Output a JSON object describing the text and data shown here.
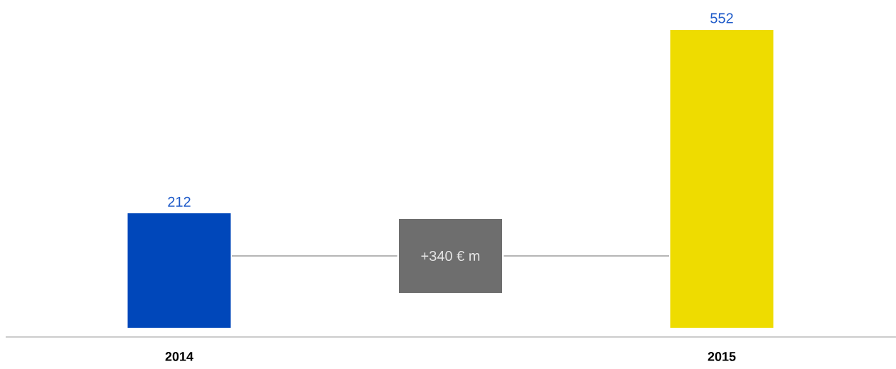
{
  "chart_data": {
    "type": "bar",
    "categories": [
      "2014",
      "2015"
    ],
    "values": [
      212,
      552
    ],
    "colors": [
      "#0047ba",
      "#eedc00"
    ],
    "data_labels": true,
    "annotations": [
      "+340 € m"
    ]
  }
}
